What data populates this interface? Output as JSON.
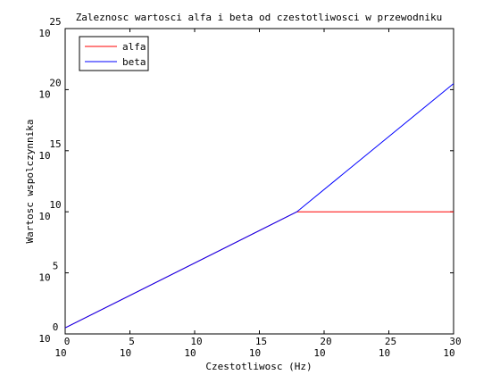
{
  "chart_data": {
    "type": "line",
    "title": "Zaleznosc wartosci alfa i beta od czestotliwosci w przewodniku",
    "xlabel": "Czestotliwosc (Hz)",
    "ylabel": "Wartosc wspolczynnika",
    "x_scale": "log",
    "y_scale": "log",
    "xlim_exponent": [
      0,
      30
    ],
    "ylim_exponent": [
      0,
      25
    ],
    "x_ticks": [
      {
        "base": "10",
        "exp": "0",
        "value": 0
      },
      {
        "base": "10",
        "exp": "5",
        "value": 5
      },
      {
        "base": "10",
        "exp": "10",
        "value": 10
      },
      {
        "base": "10",
        "exp": "15",
        "value": 15
      },
      {
        "base": "10",
        "exp": "20",
        "value": 20
      },
      {
        "base": "10",
        "exp": "25",
        "value": 25
      },
      {
        "base": "10",
        "exp": "30",
        "value": 30
      }
    ],
    "y_ticks": [
      {
        "base": "10",
        "exp": "0",
        "value": 0
      },
      {
        "base": "10",
        "exp": "5",
        "value": 5
      },
      {
        "base": "10",
        "exp": "10",
        "value": 10
      },
      {
        "base": "10",
        "exp": "15",
        "value": 15
      },
      {
        "base": "10",
        "exp": "20",
        "value": 20
      },
      {
        "base": "10",
        "exp": "25",
        "value": 25
      }
    ],
    "legend": {
      "position": "top-left"
    },
    "series": [
      {
        "name": "alfa",
        "color": "#ff0000",
        "x_exponent": [
          0,
          17.9,
          30
        ],
        "y_exponent": [
          0.5,
          10.0,
          10.0
        ]
      },
      {
        "name": "beta",
        "color": "#0000ff",
        "x_exponent": [
          0,
          17.9,
          30
        ],
        "y_exponent": [
          0.5,
          10.0,
          20.5
        ]
      }
    ]
  }
}
